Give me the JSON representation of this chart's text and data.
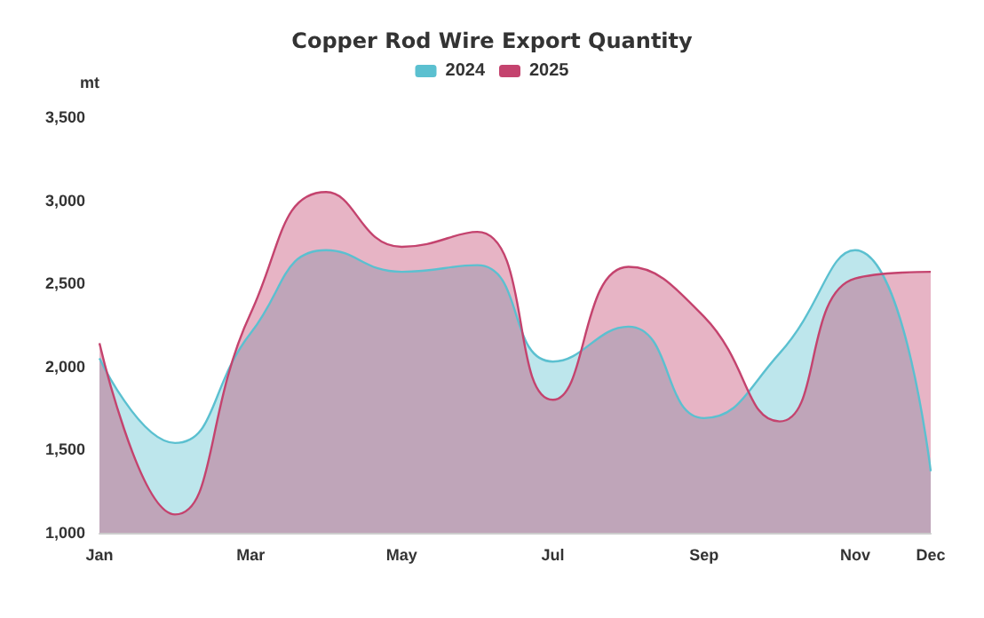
{
  "chart_data": {
    "type": "area",
    "title": "Copper Rod Wire Export Quantity",
    "ylabel": "mt",
    "categories": [
      "Jan",
      null,
      "Mar",
      null,
      "May",
      null,
      "Jul",
      null,
      "Sep",
      null,
      "Nov",
      "Dec"
    ],
    "series": [
      {
        "name": "2024",
        "color": "#5bc0d0",
        "values": [
          2050,
          1540,
          2200,
          2700,
          2570,
          2610,
          2030,
          2240,
          1690,
          2080,
          2700,
          1370
        ]
      },
      {
        "name": "2025",
        "color": "#c4436e",
        "values": [
          2140,
          1110,
          2320,
          3050,
          2720,
          2810,
          1800,
          2600,
          2300,
          1670,
          2530,
          2570
        ]
      }
    ],
    "ylim": [
      1000,
      3500
    ],
    "yticks": [
      {
        "value": 1000,
        "label": "1,000"
      },
      {
        "value": 1500,
        "label": "1,500"
      },
      {
        "value": 2000,
        "label": "2,000"
      },
      {
        "value": 2500,
        "label": "2,500"
      },
      {
        "value": 3000,
        "label": "3,000"
      },
      {
        "value": 3500,
        "label": "3,500"
      }
    ],
    "grid": false,
    "legend": "top",
    "marker": "none",
    "line_style": "solid"
  }
}
